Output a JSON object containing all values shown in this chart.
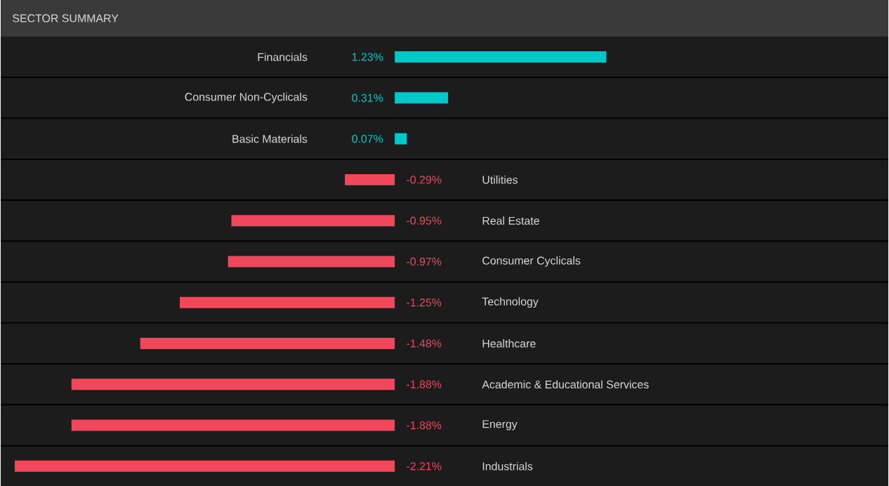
{
  "chart_data": {
    "type": "bar",
    "orientation": "horizontal",
    "title": "SECTOR SUMMARY",
    "categories": [
      "Financials",
      "Consumer Non-Cyclicals",
      "Basic Materials",
      "Utilities",
      "Real Estate",
      "Consumer Cyclicals",
      "Technology",
      "Healthcare",
      "Academic & Educational Services",
      "Energy",
      "Industrials"
    ],
    "values": [
      1.23,
      0.31,
      0.07,
      -0.29,
      -0.95,
      -0.97,
      -1.25,
      -1.48,
      -1.88,
      -1.88,
      -2.21
    ],
    "value_labels": [
      "1.23%",
      "0.31%",
      "0.07%",
      "-0.29%",
      "-0.95%",
      "-0.97%",
      "-1.25%",
      "-1.48%",
      "-1.88%",
      "-1.88%",
      "-2.21%"
    ],
    "colors": [
      "#00c8c8",
      "#00c8c8",
      "#00c8c8",
      "#f0475a",
      "#f0475a",
      "#f0475a",
      "#f0475a",
      "#f0475a",
      "#f0475a",
      "#f0475a",
      "#f0475a"
    ]
  }
}
